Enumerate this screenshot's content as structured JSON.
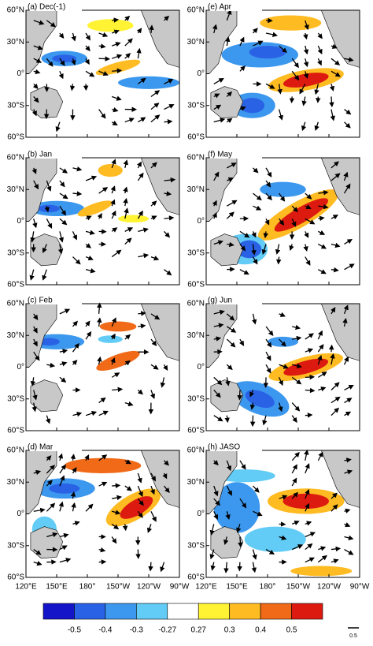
{
  "panels": [
    {
      "label": "(a) Dec(-1)"
    },
    {
      "label": "(b) Jan"
    },
    {
      "label": "(c) Feb"
    },
    {
      "label": "(d) Mar"
    },
    {
      "label": "(e) Apr"
    },
    {
      "label": "(f) May"
    },
    {
      "label": "(g) Jun"
    },
    {
      "label": "(h) JASO"
    }
  ],
  "lat_ticks": [
    "60°N",
    "30°N",
    "0°",
    "30°S",
    "60°S"
  ],
  "lon_ticks": [
    "120°E",
    "150°E",
    "180°",
    "150°W",
    "120°W",
    "90°W"
  ],
  "colorbar": {
    "colors": [
      "#1414c8",
      "#2a62e6",
      "#3c98ee",
      "#62ccf6",
      "#ffffff",
      "#fff333",
      "#ffbb22",
      "#f06a18",
      "#dd1a10"
    ],
    "ticks": [
      -0.5,
      -0.4,
      -0.3,
      -0.27,
      0.27,
      0.3,
      0.4,
      0.5
    ]
  },
  "reference_vector": {
    "label": "0.5"
  }
}
